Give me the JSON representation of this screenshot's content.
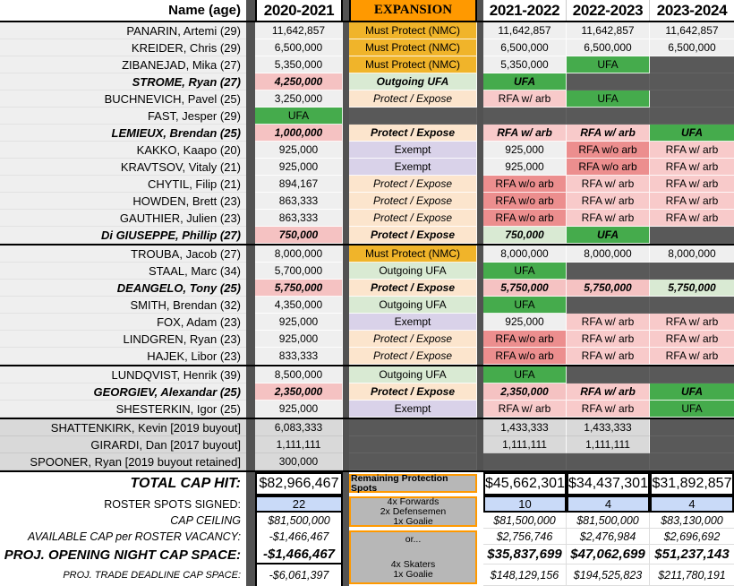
{
  "palette": {
    "row-bg": "#efefef",
    "empty-dark": "#595959",
    "gutter-dark": "#525252",
    "header-orange": "#ff9900",
    "must-protect": "#f0b42a",
    "outgoing-ufa": "#d9ead3",
    "protect-expose": "#fce5cd",
    "exempt-purple": "#d9d2e9",
    "ufa-green": "#45ab4c",
    "rfa-arb-pink": "#f8caca",
    "rfa-noarb-red": "#ec8e8e",
    "money-pink": "#f5c2c2",
    "money-green": "#d9ead3",
    "buyout-bg": "#d9d9d9",
    "spots-blue": "#c9daf8",
    "footer-box-gray": "#b7b7b7"
  },
  "header": {
    "name_col": "Name (age)",
    "expansion": "EXPANSION",
    "seasons": [
      "2020-2021",
      "2021-2022",
      "2022-2023",
      "2023-2024"
    ]
  },
  "rows": [
    {
      "name": "PANARIN, Artemi (29)",
      "bold": false,
      "buyout": false,
      "sep": false,
      "cells": [
        {
          "t": "11,642,857",
          "k": "money"
        },
        {
          "t": "Must Protect (NMC)",
          "k": "must"
        },
        {
          "t": "11,642,857",
          "k": "money"
        },
        {
          "t": "11,642,857",
          "k": "money"
        },
        {
          "t": "11,642,857",
          "k": "money"
        }
      ]
    },
    {
      "name": "KREIDER, Chris (29)",
      "bold": false,
      "buyout": false,
      "sep": false,
      "cells": [
        {
          "t": "6,500,000",
          "k": "money"
        },
        {
          "t": "Must Protect (NMC)",
          "k": "must"
        },
        {
          "t": "6,500,000",
          "k": "money"
        },
        {
          "t": "6,500,000",
          "k": "money"
        },
        {
          "t": "6,500,000",
          "k": "money"
        }
      ]
    },
    {
      "name": "ZIBANEJAD, Mika (27)",
      "bold": false,
      "buyout": false,
      "sep": false,
      "cells": [
        {
          "t": "5,350,000",
          "k": "money"
        },
        {
          "t": "Must Protect (NMC)",
          "k": "must"
        },
        {
          "t": "5,350,000",
          "k": "money"
        },
        {
          "t": "UFA",
          "k": "ufa"
        },
        {
          "t": "",
          "k": "empty"
        }
      ]
    },
    {
      "name": "STROME, Ryan (27)",
      "bold": true,
      "buyout": false,
      "sep": false,
      "cells": [
        {
          "t": "4,250,000",
          "k": "money-pink"
        },
        {
          "t": "Outgoing UFA",
          "k": "outgoing"
        },
        {
          "t": "UFA",
          "k": "ufa"
        },
        {
          "t": "",
          "k": "empty"
        },
        {
          "t": "",
          "k": "empty"
        }
      ]
    },
    {
      "name": "BUCHNEVICH, Pavel (25)",
      "bold": false,
      "buyout": false,
      "sep": false,
      "cells": [
        {
          "t": "3,250,000",
          "k": "money"
        },
        {
          "t": "Protect / Expose",
          "k": "protect"
        },
        {
          "t": "RFA w/ arb",
          "k": "rfa-arb"
        },
        {
          "t": "UFA",
          "k": "ufa"
        },
        {
          "t": "",
          "k": "empty"
        }
      ]
    },
    {
      "name": "FAST, Jesper (29)",
      "bold": false,
      "buyout": false,
      "sep": false,
      "cells": [
        {
          "t": "UFA",
          "k": "ufa"
        },
        {
          "t": "",
          "k": "empty"
        },
        {
          "t": "",
          "k": "empty"
        },
        {
          "t": "",
          "k": "empty"
        },
        {
          "t": "",
          "k": "empty"
        }
      ]
    },
    {
      "name": "LEMIEUX, Brendan (25)",
      "bold": true,
      "buyout": false,
      "sep": false,
      "cells": [
        {
          "t": "1,000,000",
          "k": "money-pink"
        },
        {
          "t": "Protect / Expose",
          "k": "protect"
        },
        {
          "t": "RFA w/ arb",
          "k": "rfa-arb"
        },
        {
          "t": "RFA w/ arb",
          "k": "rfa-arb"
        },
        {
          "t": "UFA",
          "k": "ufa"
        }
      ]
    },
    {
      "name": "KAKKO, Kaapo (20)",
      "bold": false,
      "buyout": false,
      "sep": false,
      "cells": [
        {
          "t": "925,000",
          "k": "money"
        },
        {
          "t": "Exempt",
          "k": "exempt"
        },
        {
          "t": "925,000",
          "k": "money"
        },
        {
          "t": "RFA w/o arb",
          "k": "rfa-noarb"
        },
        {
          "t": "RFA w/ arb",
          "k": "rfa-arb"
        }
      ]
    },
    {
      "name": "KRAVTSOV, Vitaly (21)",
      "bold": false,
      "buyout": false,
      "sep": false,
      "cells": [
        {
          "t": "925,000",
          "k": "money"
        },
        {
          "t": "Exempt",
          "k": "exempt"
        },
        {
          "t": "925,000",
          "k": "money"
        },
        {
          "t": "RFA w/o arb",
          "k": "rfa-noarb"
        },
        {
          "t": "RFA w/ arb",
          "k": "rfa-arb"
        }
      ]
    },
    {
      "name": "CHYTIL, Filip (21)",
      "bold": false,
      "buyout": false,
      "sep": false,
      "cells": [
        {
          "t": "894,167",
          "k": "money"
        },
        {
          "t": "Protect / Expose",
          "k": "protect"
        },
        {
          "t": "RFA w/o arb",
          "k": "rfa-noarb"
        },
        {
          "t": "RFA w/ arb",
          "k": "rfa-arb"
        },
        {
          "t": "RFA w/ arb",
          "k": "rfa-arb"
        }
      ]
    },
    {
      "name": "HOWDEN, Brett (23)",
      "bold": false,
      "buyout": false,
      "sep": false,
      "cells": [
        {
          "t": "863,333",
          "k": "money"
        },
        {
          "t": "Protect / Expose",
          "k": "protect"
        },
        {
          "t": "RFA w/o arb",
          "k": "rfa-noarb"
        },
        {
          "t": "RFA w/ arb",
          "k": "rfa-arb"
        },
        {
          "t": "RFA w/ arb",
          "k": "rfa-arb"
        }
      ]
    },
    {
      "name": "GAUTHIER, Julien (23)",
      "bold": false,
      "buyout": false,
      "sep": false,
      "cells": [
        {
          "t": "863,333",
          "k": "money"
        },
        {
          "t": "Protect / Expose",
          "k": "protect"
        },
        {
          "t": "RFA w/o arb",
          "k": "rfa-noarb"
        },
        {
          "t": "RFA w/ arb",
          "k": "rfa-arb"
        },
        {
          "t": "RFA w/ arb",
          "k": "rfa-arb"
        }
      ]
    },
    {
      "name": "Di GIUSEPPE, Phillip (27)",
      "bold": true,
      "buyout": false,
      "sep": true,
      "cells": [
        {
          "t": "750,000",
          "k": "money-pink"
        },
        {
          "t": "Protect / Expose",
          "k": "protect"
        },
        {
          "t": "750,000",
          "k": "money-green"
        },
        {
          "t": "UFA",
          "k": "ufa"
        },
        {
          "t": "",
          "k": "empty"
        }
      ]
    },
    {
      "name": "TROUBA, Jacob (27)",
      "bold": false,
      "buyout": false,
      "sep": false,
      "cells": [
        {
          "t": "8,000,000",
          "k": "money"
        },
        {
          "t": "Must Protect (NMC)",
          "k": "must"
        },
        {
          "t": "8,000,000",
          "k": "money"
        },
        {
          "t": "8,000,000",
          "k": "money"
        },
        {
          "t": "8,000,000",
          "k": "money"
        }
      ]
    },
    {
      "name": "STAAL, Marc (34)",
      "bold": false,
      "buyout": false,
      "sep": false,
      "cells": [
        {
          "t": "5,700,000",
          "k": "money"
        },
        {
          "t": "Outgoing UFA",
          "k": "outgoing"
        },
        {
          "t": "UFA",
          "k": "ufa"
        },
        {
          "t": "",
          "k": "empty"
        },
        {
          "t": "",
          "k": "empty"
        }
      ]
    },
    {
      "name": "DEANGELO, Tony (25)",
      "bold": true,
      "buyout": false,
      "sep": false,
      "cells": [
        {
          "t": "5,750,000",
          "k": "money-pink"
        },
        {
          "t": "Protect / Expose",
          "k": "protect"
        },
        {
          "t": "5,750,000",
          "k": "money-pink"
        },
        {
          "t": "5,750,000",
          "k": "money-pink"
        },
        {
          "t": "5,750,000",
          "k": "money-green"
        }
      ]
    },
    {
      "name": "SMITH, Brendan (32)",
      "bold": false,
      "buyout": false,
      "sep": false,
      "cells": [
        {
          "t": "4,350,000",
          "k": "money"
        },
        {
          "t": "Outgoing UFA",
          "k": "outgoing"
        },
        {
          "t": "UFA",
          "k": "ufa"
        },
        {
          "t": "",
          "k": "empty"
        },
        {
          "t": "",
          "k": "empty"
        }
      ]
    },
    {
      "name": "FOX, Adam (23)",
      "bold": false,
      "buyout": false,
      "sep": false,
      "cells": [
        {
          "t": "925,000",
          "k": "money"
        },
        {
          "t": "Exempt",
          "k": "exempt"
        },
        {
          "t": "925,000",
          "k": "money"
        },
        {
          "t": "RFA w/ arb",
          "k": "rfa-arb"
        },
        {
          "t": "RFA w/ arb",
          "k": "rfa-arb"
        }
      ]
    },
    {
      "name": "LINDGREN, Ryan (23)",
      "bold": false,
      "buyout": false,
      "sep": false,
      "cells": [
        {
          "t": "925,000",
          "k": "money"
        },
        {
          "t": "Protect / Expose",
          "k": "protect"
        },
        {
          "t": "RFA w/o arb",
          "k": "rfa-noarb"
        },
        {
          "t": "RFA w/ arb",
          "k": "rfa-arb"
        },
        {
          "t": "RFA w/ arb",
          "k": "rfa-arb"
        }
      ]
    },
    {
      "name": "HAJEK, Libor (23)",
      "bold": false,
      "buyout": false,
      "sep": true,
      "cells": [
        {
          "t": "833,333",
          "k": "money"
        },
        {
          "t": "Protect / Expose",
          "k": "protect"
        },
        {
          "t": "RFA w/o arb",
          "k": "rfa-noarb"
        },
        {
          "t": "RFA w/ arb",
          "k": "rfa-arb"
        },
        {
          "t": "RFA w/ arb",
          "k": "rfa-arb"
        }
      ]
    },
    {
      "name": "LUNDQVIST, Henrik (39)",
      "bold": false,
      "buyout": false,
      "sep": false,
      "cells": [
        {
          "t": "8,500,000",
          "k": "money"
        },
        {
          "t": "Outgoing UFA",
          "k": "outgoing"
        },
        {
          "t": "UFA",
          "k": "ufa"
        },
        {
          "t": "",
          "k": "empty"
        },
        {
          "t": "",
          "k": "empty"
        }
      ]
    },
    {
      "name": "GEORGIEV, Alexandar (25)",
      "bold": true,
      "buyout": false,
      "sep": false,
      "cells": [
        {
          "t": "2,350,000",
          "k": "money-pink"
        },
        {
          "t": "Protect / Expose",
          "k": "protect"
        },
        {
          "t": "2,350,000",
          "k": "money-pink"
        },
        {
          "t": "RFA w/ arb",
          "k": "rfa-arb"
        },
        {
          "t": "UFA",
          "k": "ufa"
        }
      ]
    },
    {
      "name": "SHESTERKIN, Igor (25)",
      "bold": false,
      "buyout": false,
      "sep": true,
      "cells": [
        {
          "t": "925,000",
          "k": "money"
        },
        {
          "t": "Exempt",
          "k": "exempt"
        },
        {
          "t": "RFA w/ arb",
          "k": "rfa-arb"
        },
        {
          "t": "RFA w/ arb",
          "k": "rfa-arb"
        },
        {
          "t": "UFA",
          "k": "ufa"
        }
      ]
    },
    {
      "name": "SHATTENKIRK, Kevin [2019 buyout]",
      "bold": false,
      "buyout": true,
      "sep": false,
      "cells": [
        {
          "t": "6,083,333",
          "k": "money-gray"
        },
        {
          "t": "",
          "k": "empty"
        },
        {
          "t": "1,433,333",
          "k": "money-gray"
        },
        {
          "t": "1,433,333",
          "k": "money-gray"
        },
        {
          "t": "",
          "k": "empty"
        }
      ]
    },
    {
      "name": "GIRARDI, Dan [2017 buyout]",
      "bold": false,
      "buyout": true,
      "sep": false,
      "cells": [
        {
          "t": "1,111,111",
          "k": "money-gray"
        },
        {
          "t": "",
          "k": "empty"
        },
        {
          "t": "1,111,111",
          "k": "money-gray"
        },
        {
          "t": "1,111,111",
          "k": "money-gray"
        },
        {
          "t": "",
          "k": "empty"
        }
      ]
    },
    {
      "name": "SPOONER, Ryan [2019 buyout retained]",
      "bold": false,
      "buyout": true,
      "sep": true,
      "cells": [
        {
          "t": "300,000",
          "k": "money-gray"
        },
        {
          "t": "",
          "k": "empty"
        },
        {
          "t": "",
          "k": "empty"
        },
        {
          "t": "",
          "k": "empty"
        },
        {
          "t": "",
          "k": "empty"
        }
      ]
    }
  ],
  "footer": {
    "rows": [
      {
        "label": "TOTAL CAP HIT:",
        "values": [
          "$82,966,467",
          "$45,662,301",
          "$34,437,301",
          "$31,892,857"
        ]
      },
      {
        "label": "ROSTER SPOTS SIGNED:",
        "values": [
          "22",
          "10",
          "4",
          "4"
        ]
      },
      {
        "label": "CAP CEILING",
        "values": [
          "$81,500,000",
          "$81,500,000",
          "$81,500,000",
          "$83,130,000"
        ]
      },
      {
        "label": "AVAILABLE CAP per ROSTER VACANCY:",
        "values": [
          "-$1,466,467",
          "$2,756,746",
          "$2,476,984",
          "$2,696,692"
        ]
      },
      {
        "label": "PROJ. OPENING NIGHT CAP SPACE:",
        "values": [
          "-$1,466,467",
          "$35,837,699",
          "$47,062,699",
          "$51,237,143"
        ]
      },
      {
        "label": "PROJ. TRADE DEADLINE CAP SPACE:",
        "values": [
          "-$6,061,397",
          "$148,129,156",
          "$194,525,823",
          "$211,780,191"
        ]
      }
    ],
    "boxes": {
      "protection_header": "Remaining Protection Spots",
      "option_a": [
        "4x Forwards",
        "2x Defensemen",
        "1x Goalie"
      ],
      "or_label": "or...",
      "option_b": [
        "4x Skaters",
        "1x Goalie"
      ]
    }
  }
}
